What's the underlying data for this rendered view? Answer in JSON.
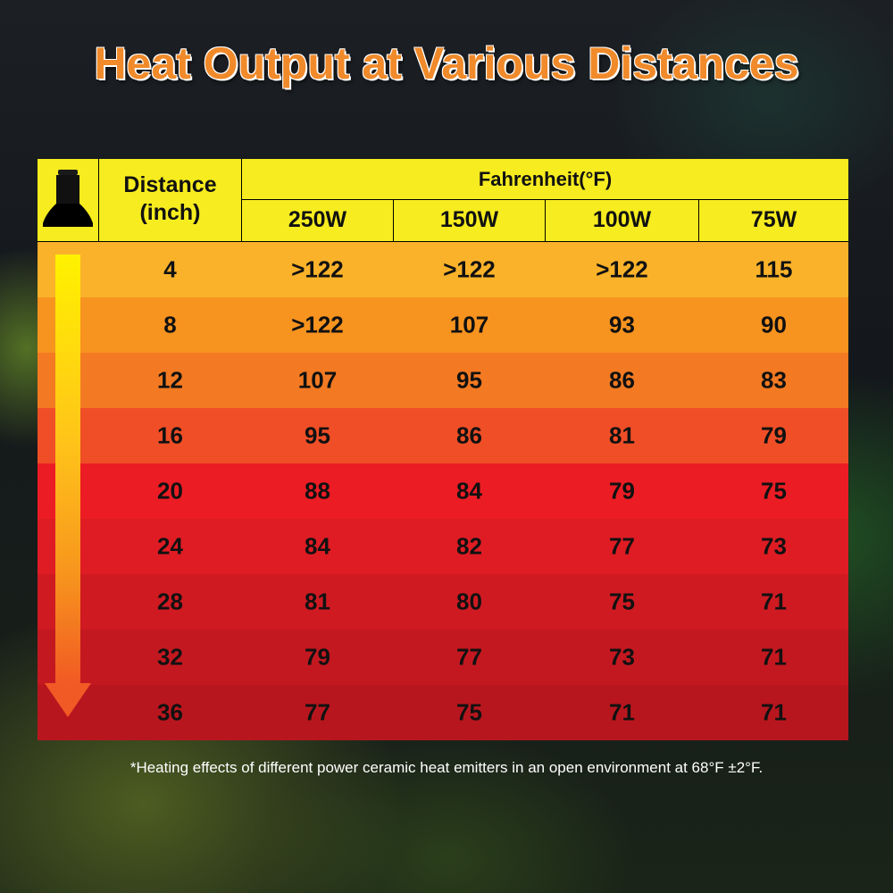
{
  "title": "Heat Output at Various Distances",
  "footnote": "*Heating effects of different power ceramic heat emitters in an open environment at 68°F ±2°F.",
  "colors": {
    "title": "#f08a2a",
    "header": "#f6ec1f",
    "row_colors": [
      "#f9b22a",
      "#f7931f",
      "#f37a22",
      "#ef4e26",
      "#ec1c24",
      "#df1c24",
      "#cf1a22",
      "#c41820",
      "#b8161e"
    ]
  },
  "icons": {
    "header": "heat-emitter-bulb-icon",
    "side": "down-arrow-gradient-icon"
  },
  "chart_data": {
    "type": "table",
    "title": "Heat Output at Various Distances",
    "row_header_label": "Distance\n(inch)",
    "group_header": "Fahrenheit(°F)",
    "columns": [
      "250W",
      "150W",
      "100W",
      "75W"
    ],
    "rows": [
      {
        "distance": "4",
        "values": [
          ">122",
          ">122",
          ">122",
          "115"
        ]
      },
      {
        "distance": "8",
        "values": [
          ">122",
          "107",
          "93",
          "90"
        ]
      },
      {
        "distance": "12",
        "values": [
          "107",
          "95",
          "86",
          "83"
        ]
      },
      {
        "distance": "16",
        "values": [
          "95",
          "86",
          "81",
          "79"
        ]
      },
      {
        "distance": "20",
        "values": [
          "88",
          "84",
          "79",
          "75"
        ]
      },
      {
        "distance": "24",
        "values": [
          "84",
          "82",
          "77",
          "73"
        ]
      },
      {
        "distance": "28",
        "values": [
          "81",
          "80",
          "75",
          "71"
        ]
      },
      {
        "distance": "32",
        "values": [
          "79",
          "77",
          "73",
          "71"
        ]
      },
      {
        "distance": "36",
        "values": [
          "77",
          "75",
          "71",
          "71"
        ]
      }
    ]
  }
}
